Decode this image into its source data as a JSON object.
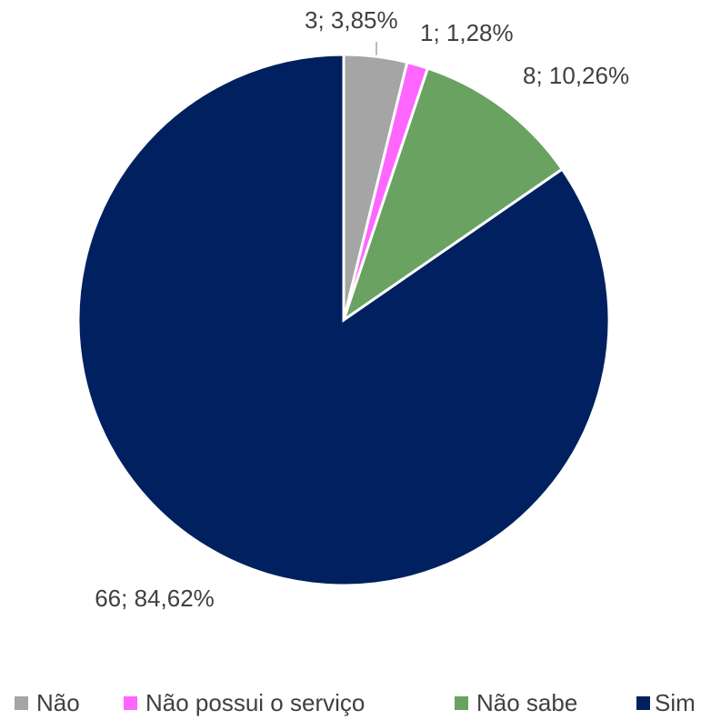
{
  "chart_data": {
    "type": "pie",
    "categories": [
      "Não",
      "Não possui o serviço",
      "Não sabe",
      "Sim"
    ],
    "values": [
      3,
      1,
      8,
      66
    ],
    "value_labels": [
      "3; 3,85%",
      "1; 1,28%",
      "8; 10,26%",
      "66; 84,62%"
    ],
    "colors": [
      "#a5a5a5",
      "#ff66ff",
      "#6aa262",
      "#002060"
    ],
    "legend": "bottom"
  }
}
